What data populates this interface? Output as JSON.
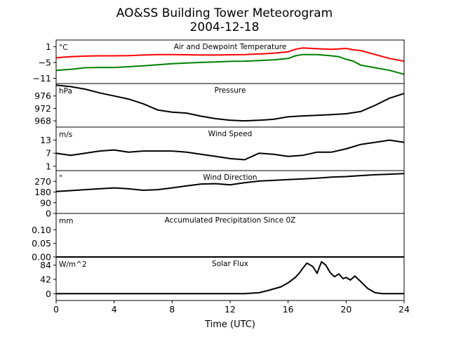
{
  "figure": {
    "title_line1": "AO&SS Building Tower Meteorogram",
    "title_line2": "2004-12-18",
    "xlabel": "Time (UTC)"
  },
  "chart_data": {
    "type": "line",
    "title": "AO&SS Building Tower Meteorogram 2004-12-18",
    "xlabel": "Time (UTC)",
    "xlim": [
      0,
      24
    ],
    "xticks": [
      0,
      4,
      8,
      12,
      16,
      20,
      24
    ],
    "panels": [
      {
        "key": "temp",
        "title": "Air and Dewpoint Temperature",
        "unit": "°C",
        "ylim": [
          -13,
          3.5
        ],
        "yticks": [
          1,
          -5,
          -11
        ],
        "series": [
          {
            "color": "#ff0000",
            "x": [
              0,
              1,
              2,
              3,
              4,
              5,
              6,
              7,
              8,
              9,
              10,
              11,
              12,
              13,
              14,
              15,
              16,
              16.5,
              17,
              18,
              19,
              20,
              20.5,
              21,
              22,
              23,
              24
            ],
            "y": [
              -3.2,
              -2.8,
              -2.6,
              -2.5,
              -2.5,
              -2.4,
              -2.2,
              -2.0,
              -2.0,
              -2.1,
              -2.2,
              -2.2,
              -2.1,
              -2.0,
              -1.8,
              -1.5,
              -1.0,
              0.0,
              0.5,
              0.2,
              0.0,
              0.3,
              -0.2,
              -0.5,
              -2.0,
              -3.5,
              -4.5
            ]
          },
          {
            "color": "#008000",
            "x": [
              0,
              1,
              2,
              3,
              4,
              5,
              6,
              7,
              8,
              9,
              10,
              11,
              12,
              13,
              14,
              15,
              16,
              16.5,
              17,
              18,
              19,
              19.5,
              20,
              20.5,
              21,
              22,
              23,
              24
            ],
            "y": [
              -8.0,
              -7.6,
              -7.0,
              -6.9,
              -6.9,
              -6.6,
              -6.3,
              -5.9,
              -5.5,
              -5.2,
              -5.0,
              -4.8,
              -4.6,
              -4.5,
              -4.3,
              -4.0,
              -3.5,
              -2.5,
              -2.0,
              -2.0,
              -2.5,
              -2.8,
              -3.8,
              -4.5,
              -6.0,
              -7.0,
              -8.0,
              -9.5
            ]
          }
        ]
      },
      {
        "key": "pressure",
        "title": "Pressure",
        "unit": "hPa",
        "ylim": [
          966,
          980
        ],
        "yticks": [
          976,
          972,
          968
        ],
        "series": [
          {
            "color": "#000000",
            "x": [
              0,
              1,
              2,
              3,
              4,
              5,
              6,
              7,
              8,
              9,
              10,
              11,
              12,
              13,
              14,
              15,
              16,
              17,
              18,
              19,
              20,
              21,
              22,
              23,
              24
            ],
            "y": [
              979.5,
              979.0,
              978.2,
              977.0,
              976.0,
              975.0,
              973.5,
              971.5,
              970.8,
              970.5,
              969.5,
              968.7,
              968.2,
              968.0,
              968.2,
              968.5,
              969.3,
              969.6,
              969.8,
              970.0,
              970.3,
              971.0,
              973.0,
              975.3,
              976.8
            ]
          }
        ]
      },
      {
        "key": "wind_speed",
        "title": "Wind Speed",
        "unit": "m/s",
        "ylim": [
          -1,
          19
        ],
        "yticks": [
          13,
          7,
          1
        ],
        "series": [
          {
            "color": "#000000",
            "x": [
              0,
              1,
              2,
              3,
              4,
              5,
              6,
              7,
              8,
              9,
              10,
              11,
              12,
              13,
              14,
              15,
              16,
              17,
              18,
              19,
              20,
              21,
              22,
              23,
              24
            ],
            "y": [
              7,
              6,
              7,
              8,
              8.5,
              7.5,
              8,
              8,
              8,
              7.5,
              6.5,
              5.5,
              4.5,
              4,
              7,
              6.5,
              5.5,
              6,
              7.5,
              7.5,
              9,
              11,
              12,
              13,
              12
            ]
          }
        ]
      },
      {
        "key": "wind_dir",
        "title": "Wind Direction",
        "unit": "°",
        "ylim": [
          0,
          360
        ],
        "yticks": [
          270,
          180,
          90,
          0
        ],
        "series": [
          {
            "color": "#000000",
            "x": [
              0,
              1,
              2,
              3,
              4,
              5,
              6,
              7,
              8,
              9,
              10,
              11,
              12,
              13,
              14,
              15,
              16,
              17,
              18,
              19,
              20,
              21,
              22,
              23,
              24
            ],
            "y": [
              185,
              192,
              200,
              207,
              215,
              207,
              195,
              200,
              215,
              232,
              247,
              250,
              240,
              258,
              272,
              278,
              285,
              290,
              297,
              305,
              310,
              318,
              325,
              330,
              335
            ]
          }
        ]
      },
      {
        "key": "precip",
        "title": "Accumulated Precipitation Since 0Z",
        "unit": "mm",
        "ylim": [
          0,
          0.16
        ],
        "yticks": [
          0.1,
          0.05,
          0.0
        ],
        "ytick_labels": [
          "0.10",
          "0.05",
          "0.00"
        ],
        "series": [
          {
            "color": "#000000",
            "x": [
              0,
              24
            ],
            "y": [
              0,
              0
            ]
          }
        ]
      },
      {
        "key": "solar",
        "title": "Solar Flux",
        "unit": "W/m^2",
        "ylim": [
          -20,
          108
        ],
        "yticks": [
          84,
          42,
          0
        ],
        "series": [
          {
            "color": "#000000",
            "x": [
              0,
              13,
              14,
              14.5,
              15,
              15.5,
              16,
              16.5,
              16.8,
              17,
              17.3,
              17.7,
              18,
              18.3,
              18.6,
              18.9,
              19.2,
              19.5,
              19.8,
              20,
              20.3,
              20.6,
              21,
              21.5,
              22,
              22.5,
              24
            ],
            "y": [
              0,
              0,
              3,
              8,
              14,
              20,
              32,
              48,
              62,
              74,
              90,
              80,
              60,
              94,
              84,
              62,
              50,
              58,
              44,
              48,
              40,
              52,
              36,
              15,
              3,
              0,
              0
            ]
          }
        ]
      }
    ]
  }
}
